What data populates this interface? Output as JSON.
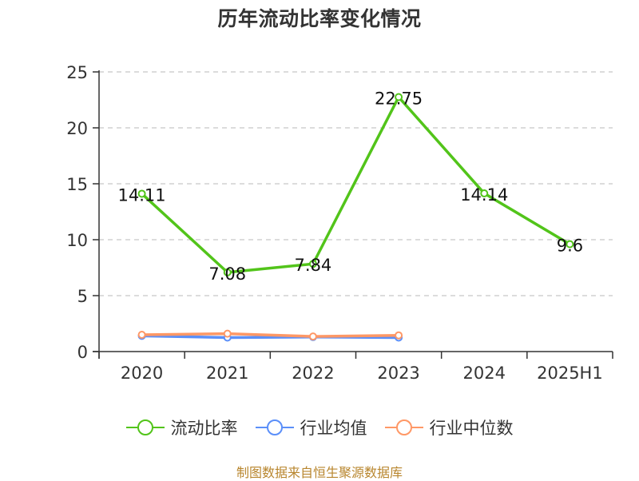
{
  "title": "历年流动比率变化情况",
  "source": "制图数据来自恒生聚源数据库",
  "legend": [
    {
      "label": "流动比率",
      "color": "#52c41a"
    },
    {
      "label": "行业均值",
      "color": "#5b8ff9"
    },
    {
      "label": "行业中位数",
      "color": "#ff9866"
    }
  ],
  "chart_data": {
    "type": "line",
    "title": "历年流动比率变化情况",
    "xlabel": "",
    "ylabel": "",
    "categories": [
      "2020",
      "2021",
      "2022",
      "2023",
      "2024",
      "2025H1"
    ],
    "ylim": [
      0,
      25
    ],
    "yticks": [
      0,
      5,
      10,
      15,
      20,
      25
    ],
    "grid": "horizontal dashed",
    "legend_position": "bottom",
    "series": [
      {
        "name": "流动比率",
        "color": "#52c41a",
        "values": [
          14.11,
          7.08,
          7.84,
          22.75,
          14.14,
          9.6
        ],
        "labels": [
          "14.11",
          "7.08",
          "7.84",
          "22.75",
          "14.14",
          "9.6"
        ]
      },
      {
        "name": "行业均值",
        "color": "#5b8ff9",
        "values": [
          1.4,
          1.25,
          1.3,
          1.25,
          null,
          null
        ]
      },
      {
        "name": "行业中位数",
        "color": "#ff9866",
        "values": [
          1.5,
          1.6,
          1.35,
          1.45,
          null,
          null
        ]
      }
    ]
  }
}
